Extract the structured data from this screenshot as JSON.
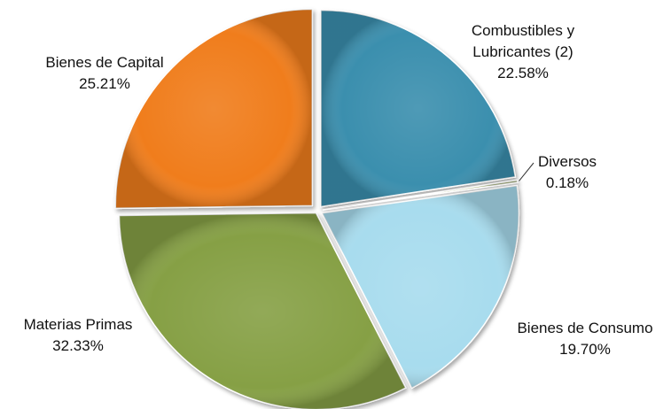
{
  "chart_data": {
    "type": "pie",
    "slices": [
      {
        "label": "Combustibles y Lubricantes (2)",
        "value": 22.58,
        "value_label": "22.58%",
        "color": "#3a8fae"
      },
      {
        "label": "Diversos",
        "value": 0.18,
        "value_label": "0.18%",
        "color": "#9aa868"
      },
      {
        "label": "Bienes de Consumo",
        "value": 19.7,
        "value_label": "19.70%",
        "color": "#a8dcee"
      },
      {
        "label": "Materias Primas",
        "value": 32.33,
        "value_label": "32.33%",
        "color": "#86a045"
      },
      {
        "label": "Bienes de Capital",
        "value": 25.21,
        "value_label": "25.21%",
        "color": "#f07d1a"
      }
    ],
    "legend": "none",
    "exploded": true
  }
}
